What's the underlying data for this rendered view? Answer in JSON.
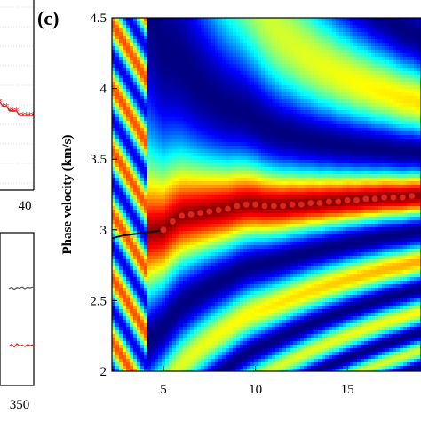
{
  "chart_data": [
    {
      "type": "scatter",
      "note_panel": "left partial panels (cropped)",
      "x_ticks_top": [
        "40"
      ],
      "x_ticks_bottom": [
        "350"
      ],
      "series": [
        {
          "color": "#e02020",
          "marker": "star",
          "values": [
            4.1,
            4.0,
            4.0,
            3.9,
            3.9,
            3.9,
            3.8,
            3.8,
            3.8,
            3.8,
            3.8
          ]
        },
        {
          "color": "#555555",
          "values": [
            3.0,
            3.05,
            2.98,
            3.04,
            3.02,
            3.06,
            3.0,
            3.05,
            3.03,
            3.06
          ]
        },
        {
          "color": "#e02020",
          "values": [
            2.2,
            2.28,
            2.18,
            2.3,
            2.22,
            2.25,
            2.2,
            2.27,
            2.23,
            2.26
          ]
        }
      ]
    },
    {
      "type": "heatmap",
      "panel_label": "(c)",
      "ylabel": "Phase velocity (km/s)",
      "xlabel": "",
      "xlim": [
        2.2,
        19
      ],
      "ylim": [
        2,
        4.5
      ],
      "x_ticks": [
        "5",
        "10",
        "15"
      ],
      "x_tick_values": [
        5,
        10,
        15
      ],
      "y_ticks": [
        "2",
        "2.5",
        "3",
        "3.5",
        "4",
        "4.5"
      ],
      "y_tick_values": [
        2,
        2.5,
        3,
        3.5,
        4,
        4.5
      ],
      "colormap": "jet",
      "grid": false,
      "series": [
        {
          "color": "#e0261c",
          "marker": "circle",
          "x": [
            5.0,
            5.5,
            6.0,
            6.5,
            7.0,
            7.5,
            8.0,
            8.5,
            9.0,
            9.5,
            10.0,
            10.5,
            11.0,
            11.5,
            12.0,
            12.5,
            13.0,
            13.5,
            14.0,
            14.5,
            15.0,
            15.5,
            16.0,
            16.5,
            17.0,
            17.5,
            18.0,
            18.5
          ],
          "y": [
            3.0,
            3.06,
            3.1,
            3.11,
            3.12,
            3.13,
            3.14,
            3.15,
            3.17,
            3.18,
            3.18,
            3.17,
            3.17,
            3.17,
            3.18,
            3.18,
            3.19,
            3.19,
            3.2,
            3.2,
            3.21,
            3.21,
            3.22,
            3.22,
            3.23,
            3.23,
            3.23,
            3.24
          ]
        },
        {
          "color": "#111111",
          "marker": "line",
          "x": [
            2.2,
            2.8,
            3.4,
            4.0,
            4.6,
            5.0
          ],
          "y": [
            2.94,
            2.96,
            2.97,
            2.98,
            2.99,
            3.0
          ]
        }
      ]
    }
  ]
}
